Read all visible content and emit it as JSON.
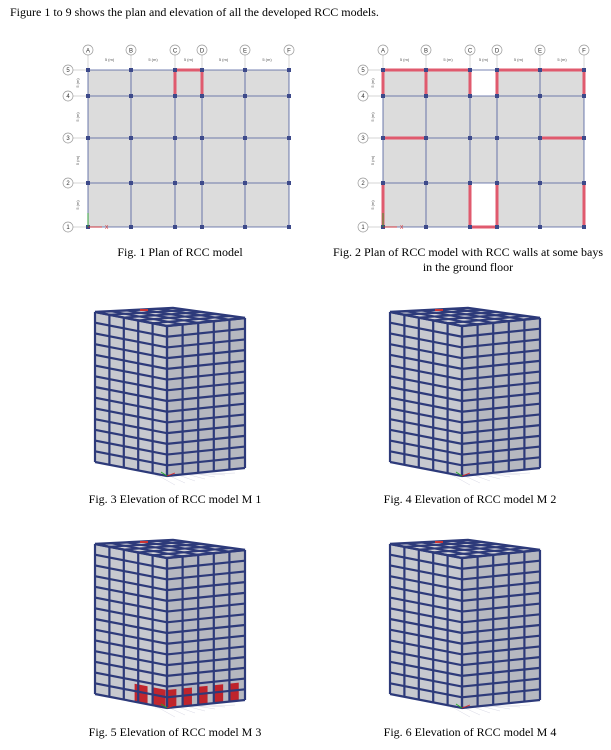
{
  "intro": "Figure 1 to 9 shows the plan and elevation of all the developed RCC models.",
  "grid": {
    "col_labels": [
      "A",
      "B",
      "C",
      "D",
      "E",
      "F"
    ],
    "row_labels": [
      "5",
      "4",
      "3",
      "2",
      "1"
    ],
    "span_label": "5 (m)"
  },
  "captions": {
    "fig1": "Fig. 1  Plan of RCC model",
    "fig2_line1": "Fig. 2  Plan of RCC model with RCC walls at some bays",
    "fig2_line2": "in the ground floor",
    "fig3": "Fig. 3  Elevation of RCC model M 1",
    "fig4": "Fig. 4  Elevation of RCC model M 2",
    "fig5": "Fig. 5  Elevation of RCC model M 3",
    "fig6": "Fig. 6  Elevation of RCC model M 4"
  },
  "colors": {
    "frame": "#2d3a7a",
    "slab": "#dcdcdc",
    "wall": "#e05a6e",
    "wall_3d": "#c0141c",
    "grid_bubble": "#999999"
  }
}
